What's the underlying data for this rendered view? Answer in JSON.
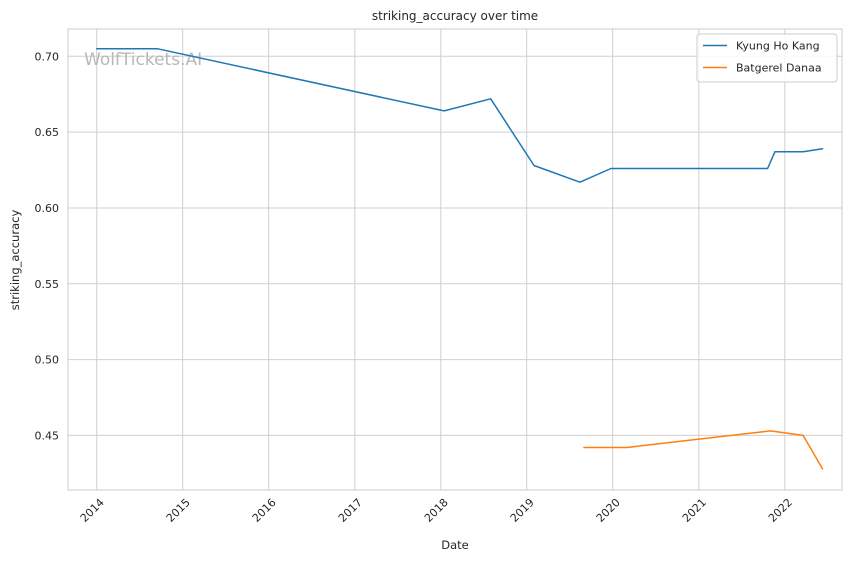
{
  "chart_data": {
    "type": "line",
    "title": "striking_accuracy over time",
    "xlabel": "Date",
    "ylabel": "striking_accuracy",
    "watermark": "WolfTickets.AI",
    "x_type": "date",
    "xlim": [
      "2013-09-01",
      "2022-09-01"
    ],
    "ylim": [
      0.414,
      0.718
    ],
    "x_ticks": [
      "2014-01-01",
      "2015-01-01",
      "2016-01-01",
      "2017-01-01",
      "2018-01-01",
      "2019-01-01",
      "2020-01-01",
      "2021-01-01",
      "2022-01-01"
    ],
    "x_tick_labels": [
      "2014",
      "2015",
      "2016",
      "2017",
      "2018",
      "2019",
      "2020",
      "2021",
      "2022"
    ],
    "y_ticks": [
      0.45,
      0.5,
      0.55,
      0.6,
      0.65,
      0.7
    ],
    "y_tick_labels": [
      "0.45",
      "0.50",
      "0.55",
      "0.60",
      "0.65",
      "0.70"
    ],
    "grid": true,
    "legend_position": "top-right",
    "series": [
      {
        "name": "Kyung Ho Kang",
        "color": "#1f77b4",
        "points": [
          {
            "x": "2014-01-01",
            "y": 0.705
          },
          {
            "x": "2014-09-15",
            "y": 0.705
          },
          {
            "x": "2018-01-15",
            "y": 0.664
          },
          {
            "x": "2018-08-01",
            "y": 0.672
          },
          {
            "x": "2019-02-01",
            "y": 0.628
          },
          {
            "x": "2019-08-15",
            "y": 0.617
          },
          {
            "x": "2019-12-25",
            "y": 0.626
          },
          {
            "x": "2021-10-20",
            "y": 0.626
          },
          {
            "x": "2021-11-20",
            "y": 0.637
          },
          {
            "x": "2022-03-20",
            "y": 0.637
          },
          {
            "x": "2022-06-10",
            "y": 0.639
          }
        ]
      },
      {
        "name": "Batgerel Danaa",
        "color": "#ff7f0e",
        "points": [
          {
            "x": "2019-09-01",
            "y": 0.442
          },
          {
            "x": "2020-03-01",
            "y": 0.442
          },
          {
            "x": "2021-11-01",
            "y": 0.453
          },
          {
            "x": "2022-03-20",
            "y": 0.45
          },
          {
            "x": "2022-06-10",
            "y": 0.428
          }
        ]
      }
    ]
  }
}
